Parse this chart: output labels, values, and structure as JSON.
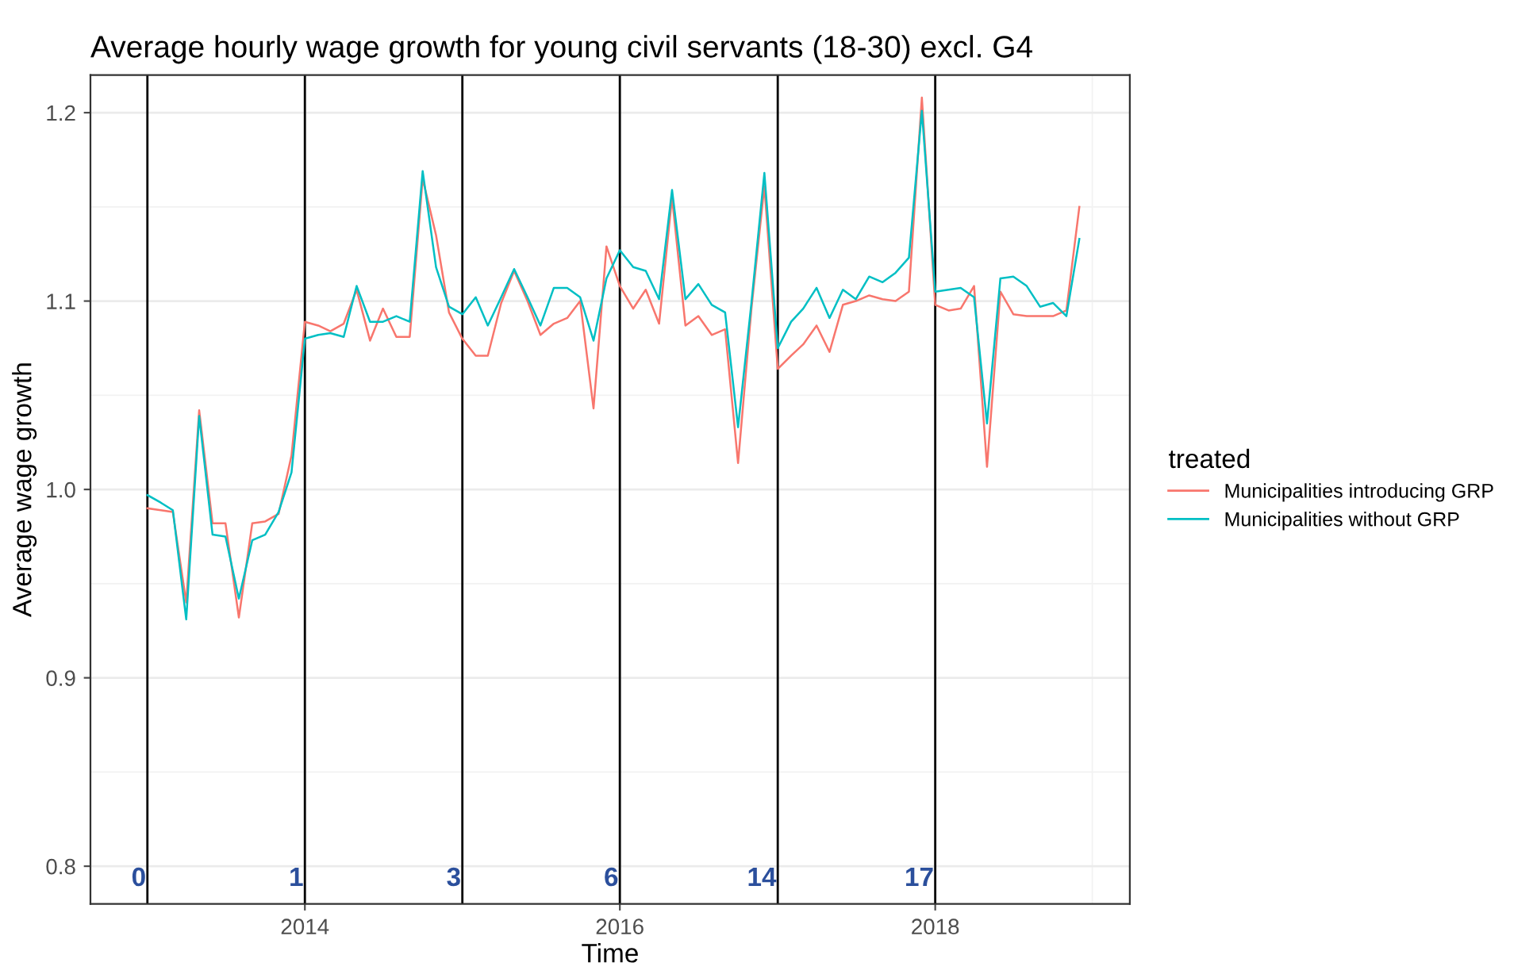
{
  "chart_data": {
    "type": "line",
    "title": "Average hourly wage growth for young civil servants (18-30) excl. G4",
    "xlabel": "Time",
    "ylabel": "Average wage growth",
    "legend_title": "treated",
    "x": [
      "2013-01",
      "2013-02",
      "2013-03",
      "2013-04",
      "2013-05",
      "2013-06",
      "2013-07",
      "2013-08",
      "2013-09",
      "2013-10",
      "2013-11",
      "2013-12",
      "2014-01",
      "2014-02",
      "2014-03",
      "2014-04",
      "2014-05",
      "2014-06",
      "2014-07",
      "2014-08",
      "2014-09",
      "2014-10",
      "2014-11",
      "2014-12",
      "2015-01",
      "2015-02",
      "2015-03",
      "2015-04",
      "2015-05",
      "2015-06",
      "2015-07",
      "2015-08",
      "2015-09",
      "2015-10",
      "2015-11",
      "2015-12",
      "2016-01",
      "2016-02",
      "2016-03",
      "2016-04",
      "2016-05",
      "2016-06",
      "2016-07",
      "2016-08",
      "2016-09",
      "2016-10",
      "2016-11",
      "2016-12",
      "2017-01",
      "2017-02",
      "2017-03",
      "2017-04",
      "2017-05",
      "2017-06",
      "2017-07",
      "2017-08",
      "2017-09",
      "2017-10",
      "2017-11",
      "2017-12",
      "2018-01",
      "2018-02",
      "2018-03",
      "2018-04",
      "2018-05",
      "2018-06",
      "2018-07",
      "2018-08",
      "2018-09",
      "2018-10",
      "2018-11",
      "2018-12"
    ],
    "series": [
      {
        "name": "Municipalities introducing GRP",
        "color": "#f8766d",
        "values": [
          0.99,
          0.989,
          0.988,
          0.94,
          1.042,
          0.982,
          0.982,
          0.932,
          0.982,
          0.983,
          0.987,
          1.018,
          1.089,
          1.087,
          1.084,
          1.088,
          1.106,
          1.079,
          1.096,
          1.081,
          1.081,
          1.165,
          1.135,
          1.094,
          1.08,
          1.071,
          1.071,
          1.099,
          1.116,
          1.1,
          1.082,
          1.088,
          1.091,
          1.1,
          1.043,
          1.129,
          1.108,
          1.096,
          1.106,
          1.088,
          1.155,
          1.087,
          1.092,
          1.082,
          1.085,
          1.014,
          1.096,
          1.161,
          1.064,
          1.071,
          1.077,
          1.087,
          1.073,
          1.098,
          1.1,
          1.103,
          1.101,
          1.1,
          1.105,
          1.208,
          1.098,
          1.095,
          1.096,
          1.108,
          1.012,
          1.105,
          1.093,
          1.092,
          1.092,
          1.092,
          1.095,
          1.15
        ]
      },
      {
        "name": "Municipalities without GRP",
        "color": "#00bfc4",
        "values": [
          0.997,
          0.993,
          0.989,
          0.931,
          1.039,
          0.976,
          0.975,
          0.942,
          0.973,
          0.976,
          0.988,
          1.009,
          1.08,
          1.082,
          1.083,
          1.081,
          1.108,
          1.089,
          1.089,
          1.092,
          1.089,
          1.169,
          1.118,
          1.097,
          1.093,
          1.102,
          1.087,
          1.102,
          1.117,
          1.102,
          1.087,
          1.107,
          1.107,
          1.102,
          1.079,
          1.112,
          1.127,
          1.118,
          1.116,
          1.101,
          1.159,
          1.101,
          1.109,
          1.098,
          1.094,
          1.033,
          1.099,
          1.168,
          1.075,
          1.089,
          1.096,
          1.107,
          1.091,
          1.106,
          1.101,
          1.113,
          1.11,
          1.115,
          1.123,
          1.201,
          1.105,
          1.106,
          1.107,
          1.102,
          1.035,
          1.112,
          1.113,
          1.108,
          1.097,
          1.099,
          1.092,
          1.133
        ]
      }
    ],
    "xlim": [
      "2012-08-22",
      "2019-03-28"
    ],
    "xticks": [
      {
        "value": "2014",
        "label": "2014"
      },
      {
        "value": "2016",
        "label": "2016"
      },
      {
        "value": "2018",
        "label": "2018"
      }
    ],
    "ylim": [
      0.78,
      1.22
    ],
    "yticks": [
      {
        "value": 0.8,
        "label": "0.8"
      },
      {
        "value": 0.9,
        "label": "0.9"
      },
      {
        "value": 1.0,
        "label": "1.0"
      },
      {
        "value": 1.1,
        "label": "1.1"
      },
      {
        "value": 1.2,
        "label": "1.2"
      }
    ],
    "ref_lines": [
      {
        "axis": "x",
        "value": "2013-01",
        "label": "0",
        "color": "#000000"
      },
      {
        "axis": "x",
        "value": "2014-01",
        "label": "1",
        "color": "#000000"
      },
      {
        "axis": "x",
        "value": "2015-01",
        "label": "3",
        "color": "#000000"
      },
      {
        "axis": "x",
        "value": "2016-01",
        "label": "6",
        "color": "#000000"
      },
      {
        "axis": "x",
        "value": "2017-01",
        "label": "14",
        "color": "#000000"
      },
      {
        "axis": "x",
        "value": "2018-01",
        "label": "17",
        "color": "#000000"
      }
    ],
    "grid": true,
    "legend": "right",
    "marker": "none",
    "line_style": "solid"
  }
}
